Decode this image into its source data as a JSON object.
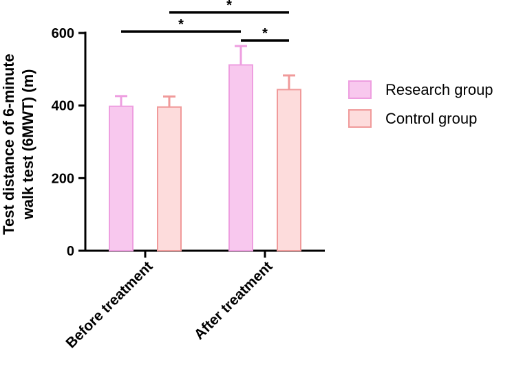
{
  "chart_data": {
    "type": "bar",
    "title": "",
    "xlabel": "",
    "ylabel_lines": [
      "Test distance of 6-minute",
      "walk test (6MWT) (m)"
    ],
    "ylim": [
      0,
      600
    ],
    "yticks": [
      0,
      200,
      400,
      600
    ],
    "categories": [
      "Before treatment",
      "After treatment"
    ],
    "series": [
      {
        "name": "Research group",
        "values": [
          398,
          512
        ],
        "errors": [
          28,
          52
        ],
        "fill": "#f8c8ee",
        "stroke": "#ee9ee0"
      },
      {
        "name": "Control group",
        "values": [
          396,
          444
        ],
        "errors": [
          29,
          39
        ],
        "fill": "#fddcdc",
        "stroke": "#f09a9a"
      }
    ],
    "legend_position": "right",
    "significance": [
      {
        "from_category": 0,
        "from_series": 0,
        "to_category": 1,
        "to_series": 0,
        "label": "*"
      },
      {
        "from_category": 0,
        "from_series": 1,
        "to_category": 1,
        "to_series": 1,
        "label": "*"
      },
      {
        "from_category": 1,
        "from_series": 0,
        "to_category": 1,
        "to_series": 1,
        "label": "*"
      }
    ]
  }
}
